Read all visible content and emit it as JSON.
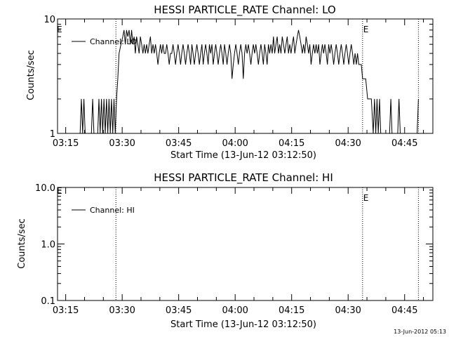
{
  "chart_data": [
    {
      "type": "line",
      "title": "HESSI PARTICLE_RATE Channel: LO",
      "xlabel": "Start Time (13-Jun-12 03:12:50)",
      "ylabel": "Counts/sec",
      "y_scale": "log",
      "ylim": [
        1,
        10
      ],
      "y_ticks": [
        {
          "value": 1,
          "label": "1"
        },
        {
          "value": 10,
          "label": "10"
        }
      ],
      "xlim": [
        "03:12:50",
        "04:52:30"
      ],
      "x_ticks": [
        "03:15",
        "03:30",
        "03:45",
        "04:00",
        "04:15",
        "04:30",
        "04:45"
      ],
      "legend": {
        "placement": "top-left",
        "entries": [
          "Channel: LO"
        ]
      },
      "vertical_markers": [
        {
          "time": "03:28:20",
          "label": ""
        },
        {
          "time": "04:33:50",
          "label": "E"
        },
        {
          "time": "04:48:40",
          "label": ""
        }
      ],
      "left_marker_label": "E",
      "series": [
        {
          "name": "Channel: LO",
          "points": [
            [
              "03:18:50",
              1
            ],
            [
              "03:19:10",
              2
            ],
            [
              "03:19:30",
              1
            ],
            [
              "03:19:50",
              2
            ],
            [
              "03:20:10",
              1
            ],
            [
              "03:21:50",
              1
            ],
            [
              "03:22:10",
              2
            ],
            [
              "03:22:30",
              1
            ],
            [
              "03:23:30",
              1
            ],
            [
              "03:23:50",
              2
            ],
            [
              "03:24:10",
              1
            ],
            [
              "03:24:30",
              2
            ],
            [
              "03:24:50",
              1
            ],
            [
              "03:25:10",
              2
            ],
            [
              "03:25:30",
              1
            ],
            [
              "03:25:50",
              2
            ],
            [
              "03:26:10",
              1
            ],
            [
              "03:26:30",
              2
            ],
            [
              "03:26:50",
              1
            ],
            [
              "03:27:10",
              2
            ],
            [
              "03:27:30",
              1
            ],
            [
              "03:27:50",
              2
            ],
            [
              "03:28:10",
              1
            ],
            [
              "03:28:30",
              2
            ],
            [
              "03:28:50",
              3
            ],
            [
              "03:29:10",
              5
            ],
            [
              "03:29:40",
              6
            ],
            [
              "03:30:10",
              7
            ],
            [
              "03:30:30",
              8
            ],
            [
              "03:30:50",
              6
            ],
            [
              "03:31:10",
              8
            ],
            [
              "03:31:30",
              7
            ],
            [
              "03:31:50",
              8
            ],
            [
              "03:32:10",
              6
            ],
            [
              "03:32:30",
              8
            ],
            [
              "03:32:50",
              6
            ],
            [
              "03:33:10",
              7
            ],
            [
              "03:33:30",
              5
            ],
            [
              "03:33:50",
              7
            ],
            [
              "03:34:10",
              6
            ],
            [
              "03:34:30",
              5
            ],
            [
              "03:34:50",
              7
            ],
            [
              "03:35:10",
              6
            ],
            [
              "03:35:30",
              5
            ],
            [
              "03:35:50",
              6
            ],
            [
              "03:36:10",
              5
            ],
            [
              "03:36:30",
              6
            ],
            [
              "03:36:50",
              5
            ],
            [
              "03:37:10",
              6
            ],
            [
              "03:37:30",
              7
            ],
            [
              "03:37:50",
              5
            ],
            [
              "03:38:10",
              6
            ],
            [
              "03:38:30",
              5
            ],
            [
              "03:38:50",
              6
            ],
            [
              "03:39:10",
              5
            ],
            [
              "03:39:30",
              4
            ],
            [
              "03:39:50",
              5
            ],
            [
              "03:40:10",
              6
            ],
            [
              "03:40:30",
              5
            ],
            [
              "03:40:50",
              6
            ],
            [
              "03:41:10",
              5
            ],
            [
              "03:41:30",
              5
            ],
            [
              "03:41:50",
              6
            ],
            [
              "03:42:10",
              5
            ],
            [
              "03:42:30",
              4
            ],
            [
              "03:42:50",
              5
            ],
            [
              "03:43:10",
              5
            ],
            [
              "03:43:30",
              6
            ],
            [
              "03:43:50",
              5
            ],
            [
              "03:44:10",
              4
            ],
            [
              "03:44:30",
              5
            ],
            [
              "03:44:50",
              6
            ],
            [
              "03:45:10",
              5
            ],
            [
              "03:45:30",
              4
            ],
            [
              "03:45:50",
              5
            ],
            [
              "03:46:10",
              6
            ],
            [
              "03:46:30",
              5
            ],
            [
              "03:46:50",
              4
            ],
            [
              "03:47:10",
              5
            ],
            [
              "03:47:30",
              6
            ],
            [
              "03:47:50",
              5
            ],
            [
              "03:48:10",
              4
            ],
            [
              "03:48:30",
              6
            ],
            [
              "03:48:50",
              5
            ],
            [
              "03:49:10",
              4
            ],
            [
              "03:49:30",
              5
            ],
            [
              "03:49:50",
              6
            ],
            [
              "03:50:10",
              5
            ],
            [
              "03:50:30",
              4
            ],
            [
              "03:50:50",
              5
            ],
            [
              "03:51:10",
              6
            ],
            [
              "03:51:30",
              4
            ],
            [
              "03:51:50",
              5
            ],
            [
              "03:52:10",
              6
            ],
            [
              "03:52:30",
              5
            ],
            [
              "03:52:50",
              4
            ],
            [
              "03:53:10",
              6
            ],
            [
              "03:53:30",
              5
            ],
            [
              "03:53:50",
              6
            ],
            [
              "03:54:10",
              4
            ],
            [
              "03:54:30",
              5
            ],
            [
              "03:54:50",
              6
            ],
            [
              "03:55:10",
              5
            ],
            [
              "03:55:30",
              4
            ],
            [
              "03:55:50",
              5
            ],
            [
              "03:56:10",
              6
            ],
            [
              "03:56:30",
              5
            ],
            [
              "03:56:50",
              4
            ],
            [
              "03:57:10",
              6
            ],
            [
              "03:57:30",
              5
            ],
            [
              "03:57:50",
              4
            ],
            [
              "03:58:10",
              5
            ],
            [
              "03:58:30",
              6
            ],
            [
              "03:58:50",
              5
            ],
            [
              "03:59:10",
              3
            ],
            [
              "03:59:30",
              4
            ],
            [
              "03:59:50",
              5
            ],
            [
              "04:00:10",
              6
            ],
            [
              "04:00:30",
              5
            ],
            [
              "04:00:50",
              4
            ],
            [
              "04:01:10",
              5
            ],
            [
              "04:01:30",
              6
            ],
            [
              "04:01:50",
              5
            ],
            [
              "04:02:10",
              3
            ],
            [
              "04:02:30",
              5
            ],
            [
              "04:02:50",
              6
            ],
            [
              "04:03:10",
              5
            ],
            [
              "04:03:30",
              6
            ],
            [
              "04:03:50",
              5
            ],
            [
              "04:04:10",
              4
            ],
            [
              "04:04:30",
              5
            ],
            [
              "04:04:50",
              6
            ],
            [
              "04:05:10",
              5
            ],
            [
              "04:05:30",
              6
            ],
            [
              "04:05:50",
              5
            ],
            [
              "04:06:10",
              4
            ],
            [
              "04:06:30",
              5
            ],
            [
              "04:06:50",
              6
            ],
            [
              "04:07:10",
              5
            ],
            [
              "04:07:30",
              4
            ],
            [
              "04:07:50",
              6
            ],
            [
              "04:08:10",
              5
            ],
            [
              "04:08:30",
              4
            ],
            [
              "04:08:50",
              6
            ],
            [
              "04:09:10",
              5
            ],
            [
              "04:09:30",
              6
            ],
            [
              "04:09:50",
              5
            ],
            [
              "04:10:10",
              7
            ],
            [
              "04:10:30",
              5
            ],
            [
              "04:10:50",
              6
            ],
            [
              "04:11:10",
              7
            ],
            [
              "04:11:30",
              5
            ],
            [
              "04:11:50",
              6
            ],
            [
              "04:12:10",
              5
            ],
            [
              "04:12:30",
              7
            ],
            [
              "04:12:50",
              6
            ],
            [
              "04:13:10",
              5
            ],
            [
              "04:13:30",
              6
            ],
            [
              "04:13:50",
              7
            ],
            [
              "04:14:10",
              5
            ],
            [
              "04:14:30",
              6
            ],
            [
              "04:14:50",
              5
            ],
            [
              "04:15:10",
              6
            ],
            [
              "04:15:30",
              7
            ],
            [
              "04:15:50",
              5
            ],
            [
              "04:16:10",
              6
            ],
            [
              "04:16:30",
              7
            ],
            [
              "04:16:50",
              8
            ],
            [
              "04:17:10",
              7
            ],
            [
              "04:17:30",
              6
            ],
            [
              "04:17:50",
              5
            ],
            [
              "04:18:10",
              6
            ],
            [
              "04:18:30",
              5
            ],
            [
              "04:18:50",
              7
            ],
            [
              "04:19:10",
              6
            ],
            [
              "04:19:30",
              5
            ],
            [
              "04:19:50",
              6
            ],
            [
              "04:20:10",
              4
            ],
            [
              "04:20:30",
              5
            ],
            [
              "04:20:50",
              6
            ],
            [
              "04:21:10",
              5
            ],
            [
              "04:21:30",
              6
            ],
            [
              "04:21:50",
              5
            ],
            [
              "04:22:10",
              6
            ],
            [
              "04:22:30",
              4
            ],
            [
              "04:22:50",
              5
            ],
            [
              "04:23:10",
              6
            ],
            [
              "04:23:30",
              5
            ],
            [
              "04:23:50",
              6
            ],
            [
              "04:24:10",
              5
            ],
            [
              "04:24:30",
              4
            ],
            [
              "04:24:50",
              6
            ],
            [
              "04:25:10",
              5
            ],
            [
              "04:25:30",
              6
            ],
            [
              "04:25:50",
              5
            ],
            [
              "04:26:10",
              4
            ],
            [
              "04:26:30",
              5
            ],
            [
              "04:26:50",
              6
            ],
            [
              "04:27:10",
              5
            ],
            [
              "04:27:30",
              4
            ],
            [
              "04:27:50",
              5
            ],
            [
              "04:28:10",
              6
            ],
            [
              "04:28:30",
              5
            ],
            [
              "04:28:50",
              4
            ],
            [
              "04:29:10",
              5
            ],
            [
              "04:29:30",
              6
            ],
            [
              "04:29:50",
              5
            ],
            [
              "04:30:10",
              4
            ],
            [
              "04:30:30",
              5
            ],
            [
              "04:30:50",
              6
            ],
            [
              "04:31:10",
              5
            ],
            [
              "04:31:30",
              4
            ],
            [
              "04:31:50",
              5
            ],
            [
              "04:32:10",
              4
            ],
            [
              "04:32:30",
              5
            ],
            [
              "04:32:50",
              4
            ],
            [
              "04:33:10",
              4
            ],
            [
              "04:33:30",
              4
            ],
            [
              "04:33:50",
              3
            ],
            [
              "04:34:20",
              3
            ],
            [
              "04:34:40",
              3
            ],
            [
              "04:35:10",
              2
            ],
            [
              "04:35:40",
              2
            ],
            [
              "04:36:10",
              2
            ],
            [
              "04:36:40",
              1
            ],
            [
              "04:37:00",
              2
            ],
            [
              "04:37:20",
              1
            ],
            [
              "04:37:40",
              2
            ],
            [
              "04:38:00",
              1
            ],
            [
              "04:38:20",
              2
            ],
            [
              "04:38:40",
              1
            ],
            [
              "04:41:00",
              1
            ],
            [
              "04:41:20",
              2
            ],
            [
              "04:41:40",
              1
            ],
            [
              "04:43:10",
              1
            ],
            [
              "04:43:30",
              2
            ],
            [
              "04:43:50",
              1
            ],
            [
              "04:48:20",
              1
            ],
            [
              "04:48:40",
              2
            ]
          ]
        }
      ]
    },
    {
      "type": "line",
      "title": "HESSI PARTICLE_RATE Channel: HI",
      "xlabel": "Start Time (13-Jun-12 03:12:50)",
      "ylabel": "Counts/sec",
      "y_scale": "log",
      "ylim": [
        0.1,
        10
      ],
      "y_ticks": [
        {
          "value": 0.1,
          "label": "0.1"
        },
        {
          "value": 1,
          "label": "1.0"
        },
        {
          "value": 10,
          "label": "10.0"
        }
      ],
      "xlim": [
        "03:12:50",
        "04:52:30"
      ],
      "x_ticks": [
        "03:15",
        "03:30",
        "03:45",
        "04:00",
        "04:15",
        "04:30",
        "04:45"
      ],
      "legend": {
        "placement": "top-left",
        "entries": [
          "Channel: HI"
        ]
      },
      "vertical_markers": [
        {
          "time": "03:28:20",
          "label": ""
        },
        {
          "time": "04:33:50",
          "label": "E"
        },
        {
          "time": "04:48:40",
          "label": ""
        }
      ],
      "left_marker_label": "E",
      "series": [
        {
          "name": "Channel: HI",
          "points": []
        }
      ]
    }
  ],
  "footer": {
    "timestamp": "13-Jun-2012 05:13"
  }
}
